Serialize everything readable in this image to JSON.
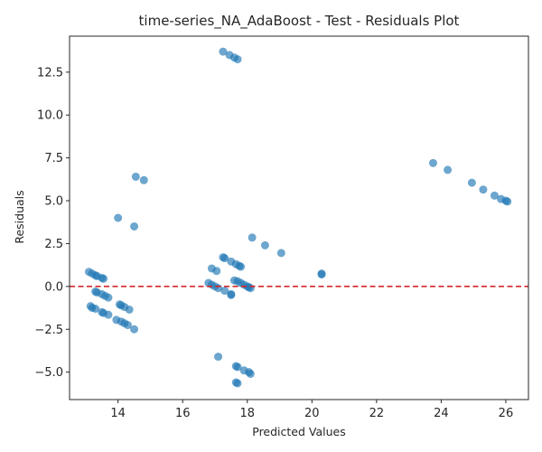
{
  "chart_data": {
    "type": "scatter",
    "title": "time-series_NA_AdaBoost - Test - Residuals Plot",
    "xlabel": "Predicted Values",
    "ylabel": "Residuals",
    "xlim": [
      12.5,
      26.7
    ],
    "ylim": [
      -6.6,
      14.6
    ],
    "xticks": [
      14,
      16,
      18,
      20,
      22,
      24,
      26
    ],
    "yticks": [
      -5.0,
      -2.5,
      0.0,
      2.5,
      5.0,
      7.5,
      10.0,
      12.5
    ],
    "xtick_labels": [
      "14",
      "16",
      "18",
      "20",
      "22",
      "24",
      "26"
    ],
    "ytick_labels": [
      "−5.0",
      "−2.5",
      "0.0",
      "2.5",
      "5.0",
      "7.5",
      "10.0",
      "12.5"
    ],
    "reference_line": {
      "y": 0,
      "style": "dashed",
      "color": "#d62728"
    },
    "point_color": "#1f77b4",
    "point_alpha": 0.65,
    "grid": false,
    "series": [
      {
        "points": [
          {
            "x": 17.25,
            "y": 13.7
          },
          {
            "x": 17.45,
            "y": 13.5
          },
          {
            "x": 17.6,
            "y": 13.35
          },
          {
            "x": 17.7,
            "y": 13.25
          },
          {
            "x": 23.75,
            "y": 7.2
          },
          {
            "x": 24.2,
            "y": 6.8
          },
          {
            "x": 24.95,
            "y": 6.05
          },
          {
            "x": 25.3,
            "y": 5.65
          },
          {
            "x": 25.65,
            "y": 5.3
          },
          {
            "x": 25.85,
            "y": 5.1
          },
          {
            "x": 26.0,
            "y": 5.0
          },
          {
            "x": 26.05,
            "y": 4.95
          },
          {
            "x": 14.55,
            "y": 6.4
          },
          {
            "x": 14.8,
            "y": 6.2
          },
          {
            "x": 14.0,
            "y": 4.0
          },
          {
            "x": 14.5,
            "y": 3.5
          },
          {
            "x": 18.15,
            "y": 2.85
          },
          {
            "x": 18.55,
            "y": 2.4
          },
          {
            "x": 19.05,
            "y": 1.95
          },
          {
            "x": 17.25,
            "y": 1.7
          },
          {
            "x": 17.3,
            "y": 1.65
          },
          {
            "x": 17.5,
            "y": 1.45
          },
          {
            "x": 17.65,
            "y": 1.3
          },
          {
            "x": 17.75,
            "y": 1.2
          },
          {
            "x": 17.8,
            "y": 1.15
          },
          {
            "x": 16.9,
            "y": 1.05
          },
          {
            "x": 17.05,
            "y": 0.9
          },
          {
            "x": 13.1,
            "y": 0.85
          },
          {
            "x": 13.2,
            "y": 0.75
          },
          {
            "x": 13.3,
            "y": 0.65
          },
          {
            "x": 13.35,
            "y": 0.6
          },
          {
            "x": 13.5,
            "y": 0.5
          },
          {
            "x": 13.55,
            "y": 0.45
          },
          {
            "x": 20.3,
            "y": 0.75
          },
          {
            "x": 20.3,
            "y": 0.7
          },
          {
            "x": 17.6,
            "y": 0.35
          },
          {
            "x": 17.7,
            "y": 0.3
          },
          {
            "x": 17.8,
            "y": 0.2
          },
          {
            "x": 17.9,
            "y": 0.1
          },
          {
            "x": 18.0,
            "y": 0.0
          },
          {
            "x": 18.05,
            "y": -0.05
          },
          {
            "x": 18.1,
            "y": -0.1
          },
          {
            "x": 16.8,
            "y": 0.2
          },
          {
            "x": 16.9,
            "y": 0.1
          },
          {
            "x": 17.0,
            "y": 0.0
          },
          {
            "x": 17.1,
            "y": -0.1
          },
          {
            "x": 17.3,
            "y": -0.25
          },
          {
            "x": 17.5,
            "y": -0.45
          },
          {
            "x": 17.5,
            "y": -0.5
          },
          {
            "x": 13.3,
            "y": -0.3
          },
          {
            "x": 13.35,
            "y": -0.35
          },
          {
            "x": 13.5,
            "y": -0.45
          },
          {
            "x": 13.6,
            "y": -0.55
          },
          {
            "x": 13.7,
            "y": -0.65
          },
          {
            "x": 14.05,
            "y": -1.05
          },
          {
            "x": 14.1,
            "y": -1.1
          },
          {
            "x": 14.2,
            "y": -1.2
          },
          {
            "x": 14.35,
            "y": -1.35
          },
          {
            "x": 13.15,
            "y": -1.15
          },
          {
            "x": 13.2,
            "y": -1.25
          },
          {
            "x": 13.3,
            "y": -1.3
          },
          {
            "x": 13.5,
            "y": -1.5
          },
          {
            "x": 13.55,
            "y": -1.55
          },
          {
            "x": 13.7,
            "y": -1.65
          },
          {
            "x": 13.95,
            "y": -1.95
          },
          {
            "x": 14.1,
            "y": -2.05
          },
          {
            "x": 14.2,
            "y": -2.15
          },
          {
            "x": 14.3,
            "y": -2.25
          },
          {
            "x": 14.5,
            "y": -2.5
          },
          {
            "x": 17.1,
            "y": -4.1
          },
          {
            "x": 17.65,
            "y": -4.65
          },
          {
            "x": 17.7,
            "y": -4.7
          },
          {
            "x": 17.9,
            "y": -4.9
          },
          {
            "x": 18.05,
            "y": -5.0
          },
          {
            "x": 18.1,
            "y": -5.1
          },
          {
            "x": 17.7,
            "y": -5.65
          },
          {
            "x": 17.65,
            "y": -5.6
          }
        ]
      }
    ]
  }
}
